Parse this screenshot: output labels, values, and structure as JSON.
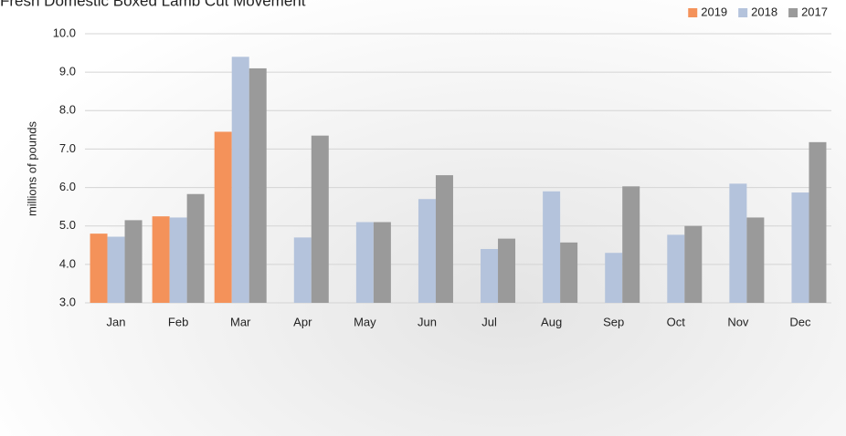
{
  "chart_data": {
    "type": "bar",
    "title": "Fresh Domestic Boxed Lamb Cut Movement",
    "y_label": "millions of pounds",
    "categories": [
      "Jan",
      "Feb",
      "Mar",
      "Apr",
      "May",
      "Jun",
      "Jul",
      "Aug",
      "Sep",
      "Oct",
      "Nov",
      "Dec"
    ],
    "series": [
      {
        "name": "2019",
        "color": "#f4925a",
        "values": [
          4.8,
          5.25,
          7.45,
          null,
          null,
          null,
          null,
          null,
          null,
          null,
          null,
          null
        ]
      },
      {
        "name": "2018",
        "color": "#b4c3dc",
        "values": [
          4.72,
          5.22,
          9.4,
          4.7,
          5.1,
          5.7,
          4.4,
          5.9,
          4.3,
          4.77,
          6.1,
          5.87
        ]
      },
      {
        "name": "2017",
        "color": "#9a9a9a",
        "values": [
          5.15,
          5.83,
          9.1,
          7.35,
          5.1,
          6.32,
          4.67,
          4.57,
          6.03,
          5.0,
          5.22,
          7.18
        ]
      }
    ],
    "ylim": [
      3,
      10
    ],
    "yticks": [
      {
        "value": 3,
        "label": "3.0"
      },
      {
        "value": 4,
        "label": "4.0"
      },
      {
        "value": 5,
        "label": "5.0"
      },
      {
        "value": 6,
        "label": "6.0"
      },
      {
        "value": 7,
        "label": "7.0"
      },
      {
        "value": 8,
        "label": "8.0"
      },
      {
        "value": 9,
        "label": "9.0"
      },
      {
        "value": 10,
        "label": "10.0"
      }
    ],
    "grid": true,
    "legend": "top-right"
  }
}
